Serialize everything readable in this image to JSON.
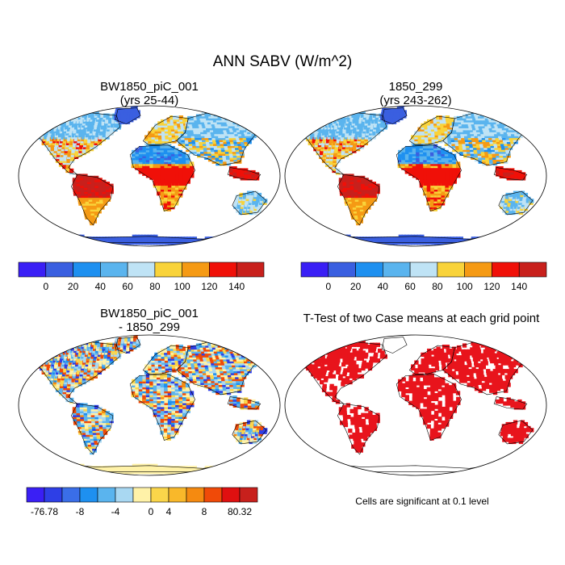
{
  "figure": {
    "title": "ANN SABV (W/m^2)"
  },
  "panels": [
    {
      "title_line1": "BW1850_piC_001",
      "title_line2": "(yrs 25-44)"
    },
    {
      "title_line1": "1850_299",
      "title_line2": "(yrs 243-262)"
    },
    {
      "title_line1": "BW1850_piC_001",
      "title_line2": "- 1850_299"
    },
    {
      "title_line1": "T-Test of two Case means at each grid point",
      "title_line2": ""
    }
  ],
  "ttest_note": "Cells are significant at 0.1 level",
  "chart_data": [
    {
      "type": "heatmap",
      "title": "BW1850_piC_001 (yrs 25-44)",
      "projection": "robinson",
      "colorbar": {
        "tick_labels": [
          "0",
          "20",
          "40",
          "60",
          "80",
          "100",
          "120",
          "140"
        ],
        "colors": [
          "#3a1ff5",
          "#3a5fe0",
          "#1e90f0",
          "#5ab4ee",
          "#bfe3f5",
          "#f9d33a",
          "#f59a14",
          "#f01008",
          "#c8201c"
        ]
      }
    },
    {
      "type": "heatmap",
      "title": "1850_299 (yrs 243-262)",
      "projection": "robinson",
      "colorbar": {
        "tick_labels": [
          "0",
          "20",
          "40",
          "60",
          "80",
          "100",
          "120",
          "140"
        ],
        "colors": [
          "#3a1ff5",
          "#3a5fe0",
          "#1e90f0",
          "#5ab4ee",
          "#bfe3f5",
          "#f9d33a",
          "#f59a14",
          "#f01008",
          "#c8201c"
        ]
      }
    },
    {
      "type": "heatmap",
      "title": "BW1850_piC_001 - 1850_299",
      "projection": "robinson",
      "colorbar": {
        "tick_labels": [
          "-76.78",
          "-8",
          "-4",
          "0",
          "4",
          "8",
          "80.32"
        ],
        "colors": [
          "#3a1ff5",
          "#2e3fe6",
          "#3a6ee8",
          "#1e90f0",
          "#5ab4ee",
          "#a9d8f2",
          "#fff2a8",
          "#fbd64a",
          "#f9b82a",
          "#f58a10",
          "#f04a08",
          "#e01010",
          "#c8201c"
        ]
      }
    },
    {
      "type": "heatmap",
      "title": "T-Test of two Case means at each grid point",
      "projection": "robinson",
      "significance_color": "#e8141c"
    }
  ]
}
